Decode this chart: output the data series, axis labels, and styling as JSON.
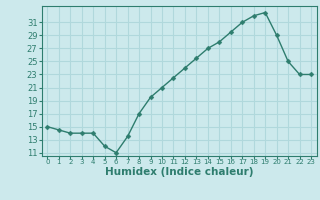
{
  "x": [
    0,
    1,
    2,
    3,
    4,
    5,
    6,
    7,
    8,
    9,
    10,
    11,
    12,
    13,
    14,
    15,
    16,
    17,
    18,
    19,
    20,
    21,
    22,
    23
  ],
  "y": [
    15,
    14.5,
    14,
    14,
    14,
    12,
    11,
    13.5,
    17,
    19.5,
    21,
    22.5,
    24,
    25.5,
    27,
    28,
    29.5,
    31,
    32,
    32.5,
    29,
    25,
    23,
    23
  ],
  "line_color": "#2e7d6e",
  "marker": "D",
  "markersize": 2.5,
  "linewidth": 1.0,
  "xlabel": "Humidex (Indice chaleur)",
  "xlabel_fontsize": 7.5,
  "ylabel_ticks": [
    11,
    13,
    15,
    17,
    19,
    21,
    23,
    25,
    27,
    29,
    31
  ],
  "ylim": [
    10.5,
    33.5
  ],
  "xlim": [
    -0.5,
    23.5
  ],
  "xtick_labels": [
    "0",
    "1",
    "2",
    "3",
    "4",
    "5",
    "6",
    "7",
    "8",
    "9",
    "10",
    "11",
    "12",
    "13",
    "14",
    "15",
    "16",
    "17",
    "18",
    "19",
    "20",
    "21",
    "22",
    "23"
  ],
  "bg_color": "#cce9ec",
  "grid_color": "#b0d8dc",
  "tick_color": "#2e7d6e",
  "label_color": "#2e7d6e",
  "spine_color": "#2e7d6e"
}
